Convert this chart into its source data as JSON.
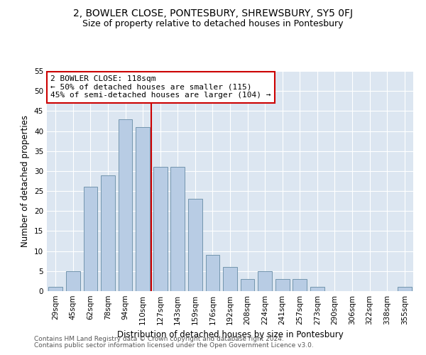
{
  "title1": "2, BOWLER CLOSE, PONTESBURY, SHREWSBURY, SY5 0FJ",
  "title2": "Size of property relative to detached houses in Pontesbury",
  "xlabel": "Distribution of detached houses by size in Pontesbury",
  "ylabel": "Number of detached properties",
  "categories": [
    "29sqm",
    "45sqm",
    "62sqm",
    "78sqm",
    "94sqm",
    "110sqm",
    "127sqm",
    "143sqm",
    "159sqm",
    "176sqm",
    "192sqm",
    "208sqm",
    "224sqm",
    "241sqm",
    "257sqm",
    "273sqm",
    "290sqm",
    "306sqm",
    "322sqm",
    "338sqm",
    "355sqm"
  ],
  "values": [
    1,
    5,
    26,
    29,
    43,
    41,
    31,
    31,
    23,
    9,
    6,
    3,
    5,
    3,
    3,
    1,
    0,
    0,
    0,
    0,
    1
  ],
  "bar_color": "#b8cce4",
  "bar_edge_color": "#7395ae",
  "vline_color": "#cc0000",
  "annotation_text": "2 BOWLER CLOSE: 118sqm\n← 50% of detached houses are smaller (115)\n45% of semi-detached houses are larger (104) →",
  "annotation_box_color": "#ffffff",
  "annotation_box_edge_color": "#cc0000",
  "ylim": [
    0,
    55
  ],
  "yticks": [
    0,
    5,
    10,
    15,
    20,
    25,
    30,
    35,
    40,
    45,
    50,
    55
  ],
  "background_color": "#dce6f1",
  "footer1": "Contains HM Land Registry data © Crown copyright and database right 2024.",
  "footer2": "Contains public sector information licensed under the Open Government Licence v3.0.",
  "title1_fontsize": 10,
  "title2_fontsize": 9,
  "xlabel_fontsize": 8.5,
  "ylabel_fontsize": 8.5,
  "tick_fontsize": 7.5,
  "annotation_fontsize": 8,
  "footer_fontsize": 6.5,
  "vline_pos": 5.5
}
